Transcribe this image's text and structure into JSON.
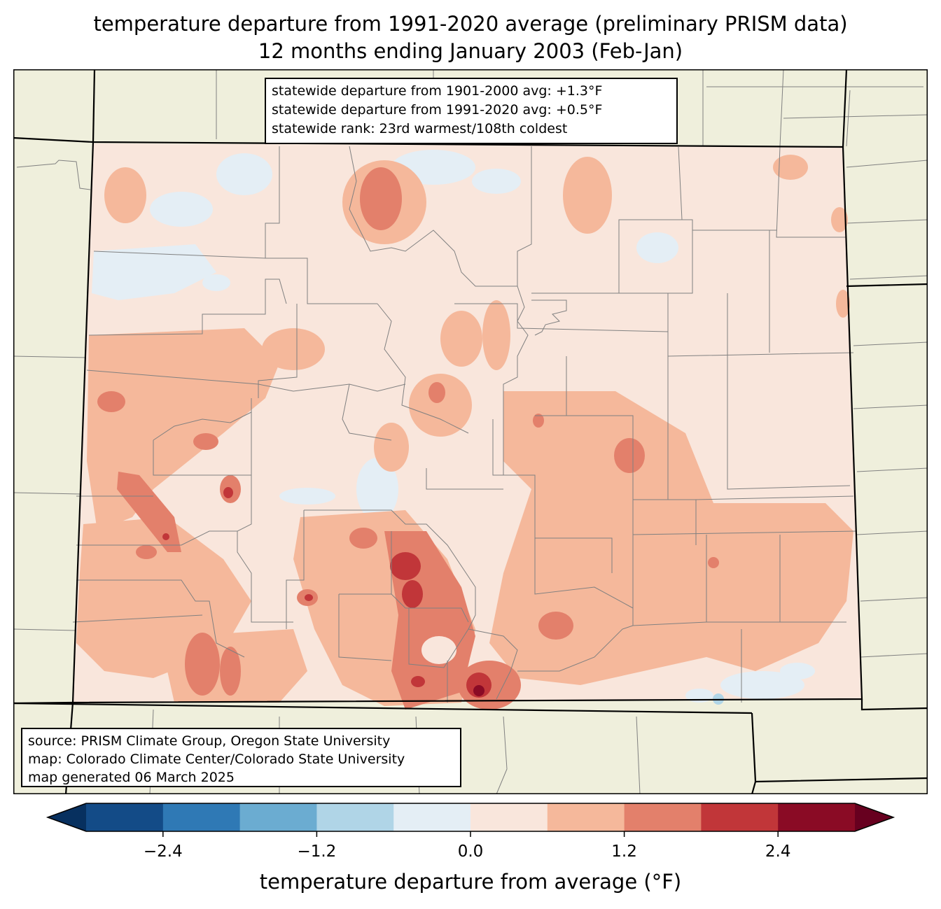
{
  "title": {
    "line1": "temperature departure from 1991-2020 average (preliminary PRISM data)",
    "line2": "12 months ending January 2003 (Feb-Jan)"
  },
  "stats": {
    "line1": "statewide departure from 1901-2000 avg: +1.3°F",
    "line2": "statewide departure from 1991-2020 avg: +0.5°F",
    "line3": "statewide rank: 23rd warmest/108th coldest"
  },
  "source": {
    "line1": "source: PRISM Climate Group, Oregon State University",
    "line2": "map: Colorado Climate Center/Colorado State University",
    "line3": "map generated 06 March 2025"
  },
  "colorbar": {
    "label": "temperature departure from average (°F)",
    "ticks": [
      "−2.4",
      "−1.2",
      "0.0",
      "1.2",
      "2.4"
    ],
    "levels": [
      -3.0,
      -2.4,
      -1.8,
      -1.2,
      -0.6,
      0.0,
      0.6,
      1.2,
      1.8,
      2.4,
      3.0
    ],
    "colors": [
      "#134b87",
      "#2f79b5",
      "#6bacd1",
      "#b0d5e7",
      "#e4eef5",
      "#f9e6dc",
      "#f5b89b",
      "#e3806b",
      "#c13639",
      "#8a0b25"
    ],
    "under_color": "#07305f",
    "over_color": "#67001f"
  },
  "map_colors": {
    "land_outside": "#efefdc",
    "state_line": "#000000",
    "county_line": "#808080"
  }
}
